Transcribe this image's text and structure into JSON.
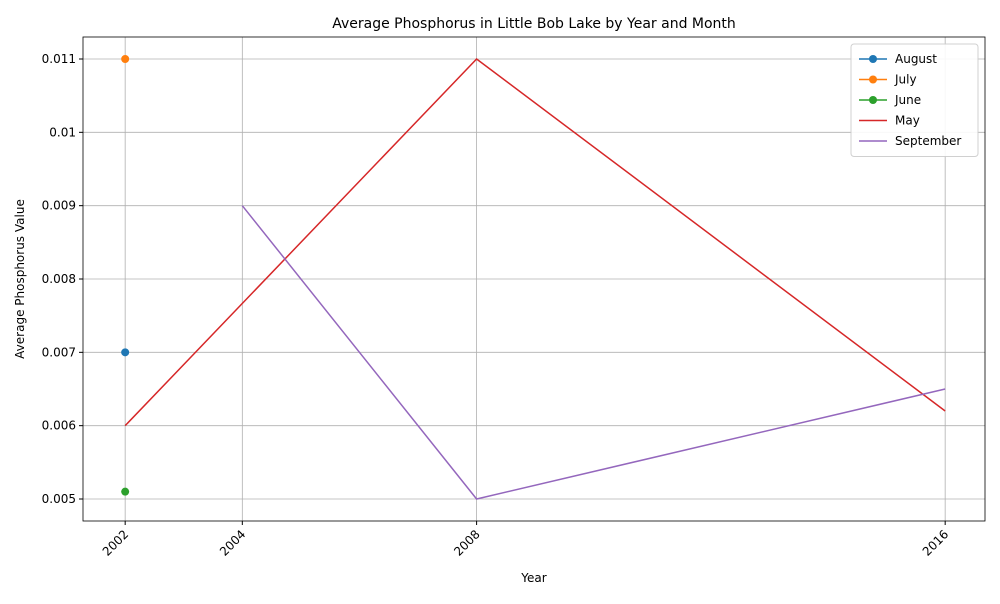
{
  "chart_data": {
    "type": "line",
    "title": "Average Phosphorus in Little Bob Lake by Year and Month",
    "x_label": "Year",
    "y_label": "Average Phosphorus Value",
    "series": [
      {
        "name": "August",
        "color": "#1f77b4",
        "marker": true,
        "x": [
          2002
        ],
        "values": [
          0.007
        ]
      },
      {
        "name": "July",
        "color": "#ff7f0e",
        "marker": true,
        "x": [
          2002
        ],
        "values": [
          0.011
        ]
      },
      {
        "name": "June",
        "color": "#2ca02c",
        "marker": true,
        "x": [
          2002
        ],
        "values": [
          0.0051
        ]
      },
      {
        "name": "May",
        "color": "#d62728",
        "marker": false,
        "x": [
          2002,
          2008,
          2016
        ],
        "values": [
          0.006,
          0.011,
          0.0062
        ]
      },
      {
        "name": "September",
        "color": "#9467bd",
        "marker": false,
        "x": [
          2004,
          2008,
          2016
        ],
        "values": [
          0.009,
          0.005,
          0.0065
        ]
      }
    ],
    "xlim": [
      2001.28,
      2016.68
    ],
    "xticks": [
      2002,
      2004,
      2008,
      2016
    ],
    "ylim": [
      0.0047,
      0.0113
    ],
    "yticks": [
      0.005,
      0.006,
      0.007,
      0.008,
      0.009,
      0.01,
      0.011
    ],
    "grid": true,
    "legend": "upper right"
  }
}
